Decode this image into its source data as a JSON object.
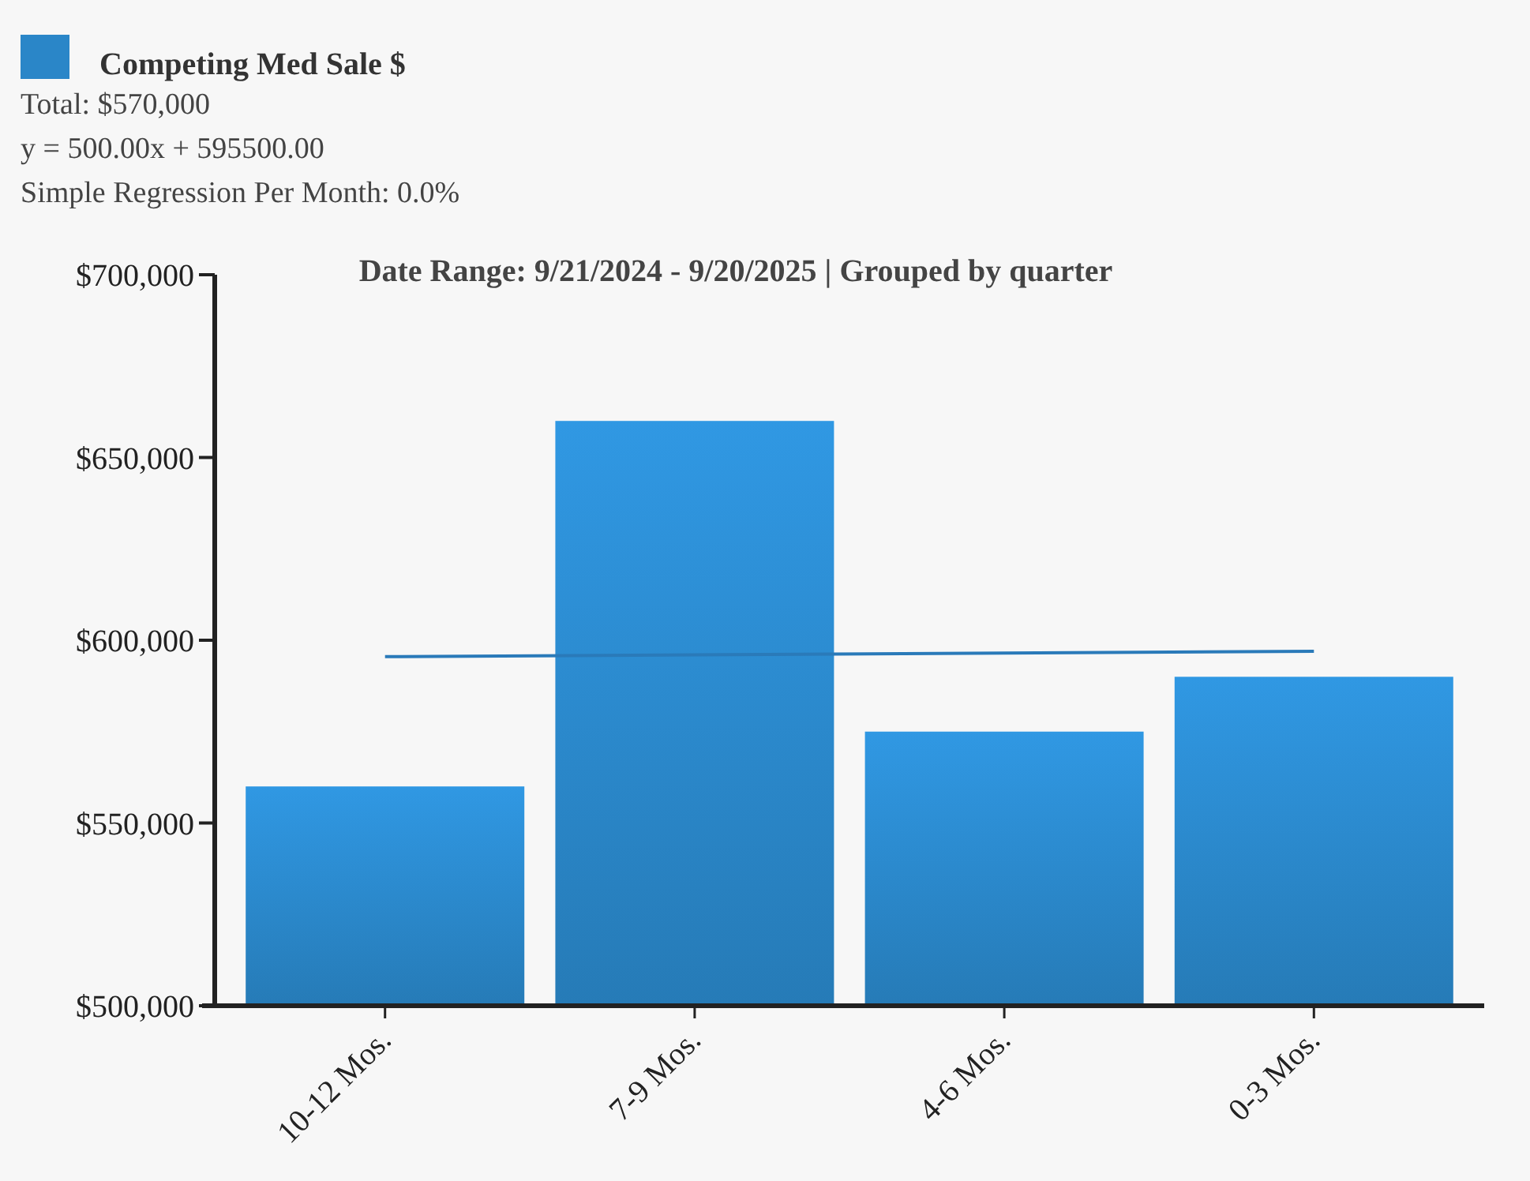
{
  "chart_data": {
    "type": "bar",
    "title": "Date Range: 9/21/2024 - 9/20/2025 | Grouped by quarter",
    "annotations": [
      "Total: $570,000",
      "y = 500.00x + 595500.00",
      "Simple Regression Per Month: 0.0%"
    ],
    "categories": [
      "10-12 Mos.",
      "7-9 Mos.",
      "4-6 Mos.",
      "0-3 Mos."
    ],
    "series": [
      {
        "name": "Competing Med Sale $",
        "color": "#2a86c8",
        "values": [
          560000,
          660000,
          575000,
          590000
        ]
      },
      {
        "type": "line",
        "color": "#2a7ab9",
        "values": [
          595500,
          596000,
          596500,
          597000
        ]
      }
    ],
    "ylim": [
      500000,
      700000
    ],
    "yticks": [
      {
        "value": 500000,
        "label": "$500,000"
      },
      {
        "value": 550000,
        "label": "$550,000"
      },
      {
        "value": 600000,
        "label": "$600,000"
      },
      {
        "value": 650000,
        "label": "$650,000"
      },
      {
        "value": 700000,
        "label": "$700,000"
      }
    ],
    "grid": false,
    "legend": "top left"
  }
}
